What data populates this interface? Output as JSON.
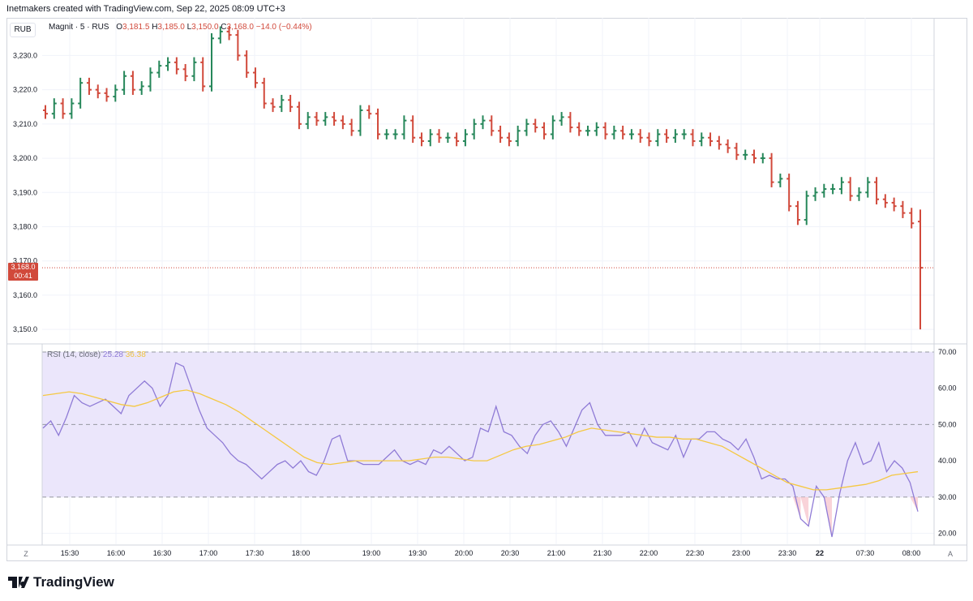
{
  "header": {
    "attribution": "Inetmakers created with TradingView.com, Sep 22, 2025 08:09 UTC+3"
  },
  "toolbar": {
    "currency_button": "RUB",
    "timezone_button": "Z",
    "auto_button": "A"
  },
  "legend": {
    "symbol": "Magnit · 5 · RUS",
    "o_label": "O",
    "o_value": "3,181.5",
    "h_label": "H",
    "h_value": "3,185.0",
    "l_label": "L",
    "l_value": "3,150.0",
    "c_label": "C",
    "c_value": "3,168.0",
    "change": "−14.0 (−0.44%)"
  },
  "price_tag": {
    "price": "3,168.0",
    "countdown": "00:41"
  },
  "rsi_legend": {
    "label": "RSI (14, close)",
    "rsi_value": "25.28",
    "ma_value": "36.38"
  },
  "footer": {
    "brand": "TradingView"
  },
  "colors": {
    "up": "#26875a",
    "down": "#d1493b",
    "rsi_line": "#8f7bd6",
    "rsi_ma": "#f5c842",
    "band_fill": "#ebe6fb"
  },
  "chart_data": [
    {
      "type": "ohlc",
      "title": "Magnit · 5 · RUS",
      "y_ticks": [
        "3,150.0",
        "3,160.0",
        "3,170.0",
        "3,180.0",
        "3,190.0",
        "3,200.0",
        "3,210.0",
        "3,220.0",
        "3,230.0"
      ],
      "ylim": [
        3146,
        3241
      ],
      "x_ticks": [
        "15:30",
        "16:00",
        "16:30",
        "17:00",
        "17:30",
        "18:00",
        "19:00",
        "19:30",
        "20:00",
        "20:30",
        "21:00",
        "21:30",
        "22:00",
        "22:30",
        "23:00",
        "23:30",
        "22",
        "07:30",
        "08:00"
      ],
      "last_price": 3168.0,
      "closes": [
        3213,
        3216,
        3213,
        3216,
        3222,
        3220,
        3219,
        3218,
        3220,
        3224,
        3220,
        3221,
        3225,
        3227,
        3228,
        3226,
        3224,
        3228,
        3221,
        3235,
        3237,
        3236,
        3230,
        3225,
        3222,
        3216,
        3215,
        3217,
        3215,
        3210,
        3212,
        3211,
        3212,
        3211,
        3210,
        3208,
        3214,
        3213,
        3207,
        3207,
        3207,
        3211,
        3206,
        3205,
        3207,
        3206,
        3206,
        3205,
        3207,
        3210,
        3211,
        3208,
        3206,
        3205,
        3208,
        3210,
        3209,
        3207,
        3211,
        3212,
        3209,
        3208,
        3208,
        3209,
        3207,
        3208,
        3207,
        3207,
        3206,
        3205,
        3207,
        3206,
        3207,
        3207,
        3205,
        3206,
        3205,
        3204,
        3203,
        3201,
        3201,
        3200,
        3200,
        3193,
        3194,
        3186,
        3182,
        3189,
        3190,
        3191,
        3191,
        3193,
        3189,
        3190,
        3193,
        3188,
        3187,
        3186,
        3184,
        3181,
        3168
      ]
    },
    {
      "type": "line",
      "title": "RSI (14, close)",
      "ylim": [
        17,
        72
      ],
      "y_ticks": [
        "20.00",
        "30.00",
        "40.00",
        "50.00",
        "60.00",
        "70.00"
      ],
      "bands": {
        "upper": 70,
        "middle": 50,
        "lower": 30
      },
      "series": [
        {
          "name": "RSI",
          "values": [
            49,
            51,
            47,
            52,
            58,
            56,
            55,
            56,
            57,
            55,
            53,
            58,
            60,
            62,
            60,
            55,
            58,
            67,
            66,
            60,
            54,
            49,
            47,
            45,
            42,
            40,
            39,
            37,
            35,
            37,
            39,
            40,
            38,
            40,
            37,
            36,
            40,
            46,
            47,
            40,
            40,
            39,
            39,
            39,
            41,
            43,
            40,
            39,
            40,
            39,
            43,
            42,
            44,
            42,
            40,
            41,
            49,
            48,
            55,
            48,
            47,
            44,
            42,
            47,
            50,
            51,
            48,
            44,
            49,
            54,
            56,
            50,
            47,
            47,
            47,
            48,
            44,
            49,
            45,
            44,
            43,
            47,
            41,
            46,
            46,
            48,
            48,
            46,
            45,
            43,
            46,
            41,
            35,
            36,
            35,
            35,
            33,
            24,
            22,
            33,
            30,
            19,
            31,
            40,
            45,
            39,
            40,
            45,
            37,
            40,
            38,
            34,
            26
          ],
          "x_start": 0,
          "x_step": 1
        },
        {
          "name": "RSI-based MA",
          "values": [
            58,
            58.5,
            59,
            58.5,
            57.5,
            56.5,
            55.5,
            55,
            56,
            57.5,
            59,
            59.5,
            58.5,
            57,
            55.5,
            53.5,
            51,
            48.5,
            46,
            43.5,
            41,
            39.5,
            39,
            39.5,
            40,
            40,
            40,
            40,
            40,
            40.5,
            41,
            41,
            40.5,
            40,
            40,
            41.5,
            43,
            44,
            44.5,
            45.5,
            46.5,
            48,
            49,
            48.5,
            48,
            47.5,
            47,
            46.5,
            46.5,
            46,
            46,
            45,
            44,
            42,
            40,
            38,
            36,
            34,
            33,
            32,
            32,
            32.5,
            33,
            33.5,
            34.5,
            36,
            36.5,
            37
          ]
        }
      ]
    }
  ]
}
